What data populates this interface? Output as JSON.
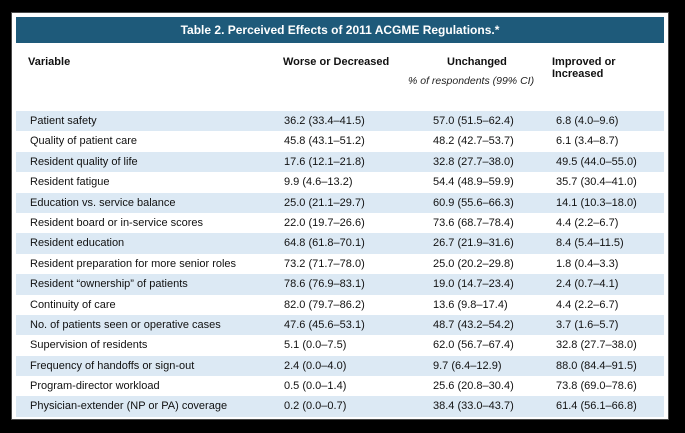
{
  "table": {
    "caption": "Table 2. Perceived Effects of 2011 ACGME Regulations.*",
    "columns": [
      "Variable",
      "Worse or Decreased",
      "Unchanged",
      "Improved or Increased"
    ],
    "subheader": "% of respondents (99% CI)",
    "rows": [
      {
        "variable": "Patient safety",
        "worse": "36.2 (33.4–41.5)",
        "unchanged": "57.0 (51.5–62.4)",
        "improved": "6.8 (4.0–9.6)"
      },
      {
        "variable": "Quality of patient care",
        "worse": "45.8 (43.1–51.2)",
        "unchanged": "48.2 (42.7–53.7)",
        "improved": "6.1 (3.4–8.7)"
      },
      {
        "variable": "Resident quality of life",
        "worse": "17.6 (12.1–21.8)",
        "unchanged": "32.8 (27.7–38.0)",
        "improved": "49.5 (44.0–55.0)"
      },
      {
        "variable": "Resident fatigue",
        "worse": "9.9 (4.6–13.2)",
        "unchanged": "54.4 (48.9–59.9)",
        "improved": "35.7 (30.4–41.0)"
      },
      {
        "variable": "Education vs. service balance",
        "worse": "25.0 (21.1–29.7)",
        "unchanged": "60.9 (55.6–66.3)",
        "improved": "14.1 (10.3–18.0)"
      },
      {
        "variable": "Resident board or in-service scores",
        "worse": "22.0 (19.7–26.6)",
        "unchanged": "73.6 (68.7–78.4)",
        "improved": "4.4 (2.2–6.7)"
      },
      {
        "variable": "Resident education",
        "worse": "64.8 (61.8–70.1)",
        "unchanged": "26.7 (21.9–31.6)",
        "improved": "8.4 (5.4–11.5)"
      },
      {
        "variable": "Resident preparation for more senior roles",
        "worse": "73.2 (71.7–78.0)",
        "unchanged": "25.0 (20.2–29.8)",
        "improved": "1.8 (0.4–3.3)"
      },
      {
        "variable": "Resident “ownership” of patients",
        "worse": "78.6 (76.9–83.1)",
        "unchanged": "19.0 (14.7–23.4)",
        "improved": "2.4 (0.7–4.1)"
      },
      {
        "variable": "Continuity of care",
        "worse": "82.0 (79.7–86.2)",
        "unchanged": "13.6 (9.8–17.4)",
        "improved": "4.4 (2.2–6.7)"
      },
      {
        "variable": "No. of patients seen or operative cases",
        "worse": "47.6 (45.6–53.1)",
        "unchanged": "48.7 (43.2–54.2)",
        "improved": "3.7 (1.6–5.7)"
      },
      {
        "variable": "Supervision of residents",
        "worse": "5.1 (0.0–7.5)",
        "unchanged": "62.0 (56.7–67.4)",
        "improved": "32.8 (27.7–38.0)"
      },
      {
        "variable": "Frequency of handoffs or sign-out",
        "worse": "2.4 (0.0–4.0)",
        "unchanged": "9.7 (6.4–12.9)",
        "improved": "88.0 (84.4–91.5)"
      },
      {
        "variable": "Program-director workload",
        "worse": "0.5 (0.0–1.4)",
        "unchanged": "25.6 (20.8–30.4)",
        "improved": "73.8 (69.0–78.6)"
      },
      {
        "variable": "Physician-extender (NP or PA) coverage",
        "worse": "0.2 (0.0–0.7)",
        "unchanged": "38.4 (33.0–43.7)",
        "improved": "61.4 (56.1–66.8)"
      }
    ]
  },
  "colors": {
    "caption_bg": "#1e5a7a",
    "shade_row": "#dce9f4",
    "page_bg": "#000000"
  }
}
